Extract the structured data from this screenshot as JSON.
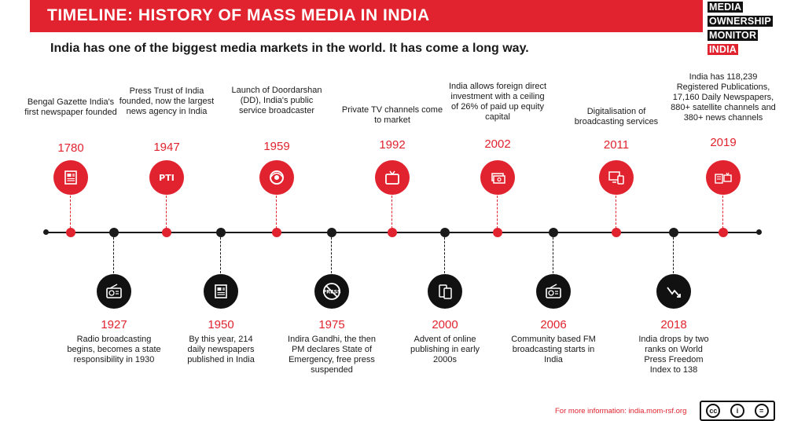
{
  "header": {
    "title": "TIMELINE: HISTORY OF MASS MEDIA IN INDIA",
    "subtitle": "India has one of the biggest media markets in the world. It has come a long way."
  },
  "logo": {
    "line1": "MEDIA",
    "line2": "OWNERSHIP",
    "line3": "MONITOR",
    "line4": "INDIA"
  },
  "colors": {
    "accent": "#e0232e",
    "dark": "#1a1a1a"
  },
  "top_events": [
    {
      "year": "1780",
      "text": "Bengal Gazette India's first newspaper founded",
      "icon": "newspaper-icon"
    },
    {
      "year": "1947",
      "text": "Press Trust of India founded, now the largest news agency in India",
      "icon": "pti-logo-icon"
    },
    {
      "year": "1959",
      "text": "Launch of Doordarshan (DD), India's public service broadcaster",
      "icon": "doordarshan-logo-icon"
    },
    {
      "year": "1992",
      "text": "Private TV channels come to market",
      "icon": "tv-icon"
    },
    {
      "year": "2002",
      "text": "India allows foreign direct investment with a ceiling of 26% of paid up equity capital",
      "icon": "money-stack-icon"
    },
    {
      "year": "2011",
      "text": "Digitalisation of broadcasting services",
      "icon": "digital-devices-icon"
    },
    {
      "year": "2019",
      "text": "India has 118,239 Registered Publications, 17,160 Daily Newspapers, 880+ satellite channels and 380+ news channels",
      "icon": "newspaper-tv-icon"
    }
  ],
  "bottom_events": [
    {
      "year": "1927",
      "text": "Radio broadcasting begins, becomes a state responsibility in 1930",
      "icon": "radio-icon"
    },
    {
      "year": "1950",
      "text": "By this year, 214 daily newspapers published in India",
      "icon": "newspaper-icon"
    },
    {
      "year": "1975",
      "text": "Indira Gandhi, the then PM declares State of Emergency, free press suspended",
      "icon": "no-press-icon"
    },
    {
      "year": "2000",
      "text": "Advent of online publishing in early 2000s",
      "icon": "mobile-devices-icon"
    },
    {
      "year": "2006",
      "text": "Community based FM broadcasting starts in India",
      "icon": "radio-icon"
    },
    {
      "year": "2018",
      "text": "India drops by two ranks on World Press Freedom Index to 138",
      "icon": "declining-hand-icon"
    }
  ],
  "footer": {
    "info": "For more information: india.mom-rsf.org",
    "license": "cc-by-icon"
  }
}
